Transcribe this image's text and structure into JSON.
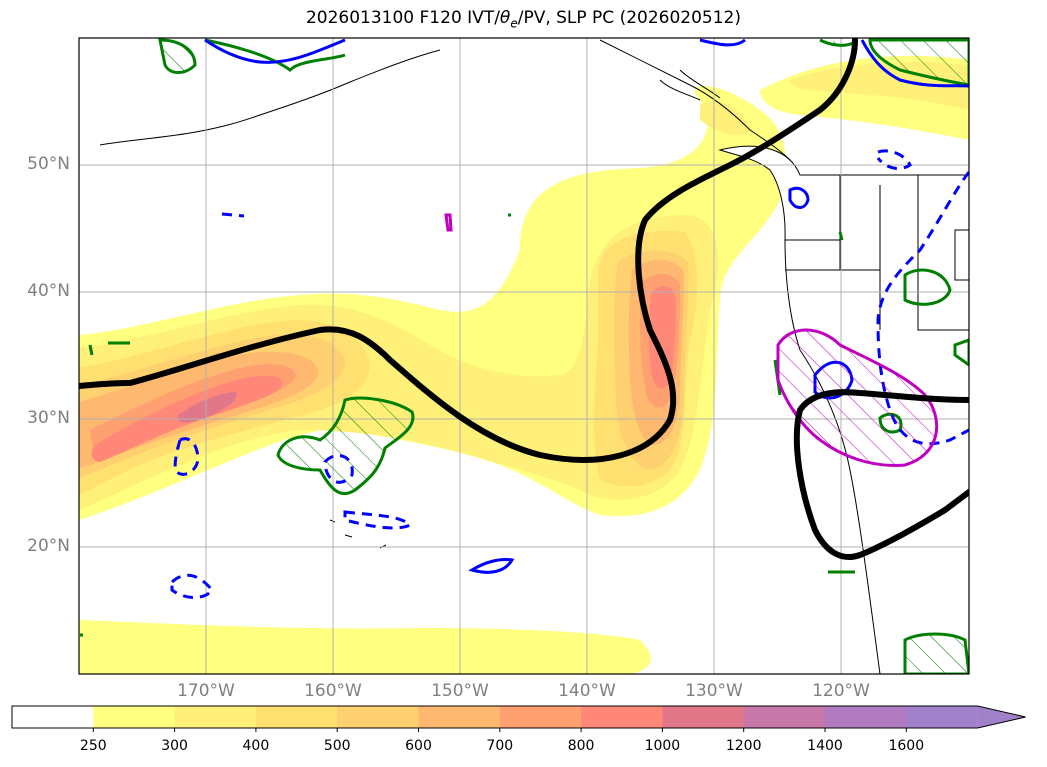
{
  "title_text": "2026013100 F120 IVT/",
  "title_theta": "θ",
  "title_sub": "e",
  "title_rest": "/PV, SLP PC (2026020512)",
  "lat_labels": [
    "50°N",
    "40°N",
    "30°N",
    "20°N"
  ],
  "lon_labels": [
    "170°W",
    "160°W",
    "150°W",
    "140°W",
    "130°W",
    "120°W"
  ],
  "colorbar": {
    "levels": [
      "250",
      "300",
      "400",
      "500",
      "600",
      "700",
      "800",
      "1000",
      "1200",
      "1400",
      "1600"
    ],
    "colors": [
      "#ffffff",
      "#ffff80",
      "#fff079",
      "#ffe070",
      "#ffd070",
      "#ffb870",
      "#ffa070",
      "#ff8878",
      "#e0788a",
      "#c878a8",
      "#b07ac0",
      "#a080c8"
    ]
  },
  "map_extent": {
    "lon": [
      -180,
      -110
    ],
    "lat": [
      10,
      60
    ]
  },
  "contour_colors": {
    "slp": "#000000",
    "pv_solid": "#0000ff",
    "pv_dashed": "#0000ff",
    "theta": "#008000",
    "pv_high": "#c000c0"
  }
}
